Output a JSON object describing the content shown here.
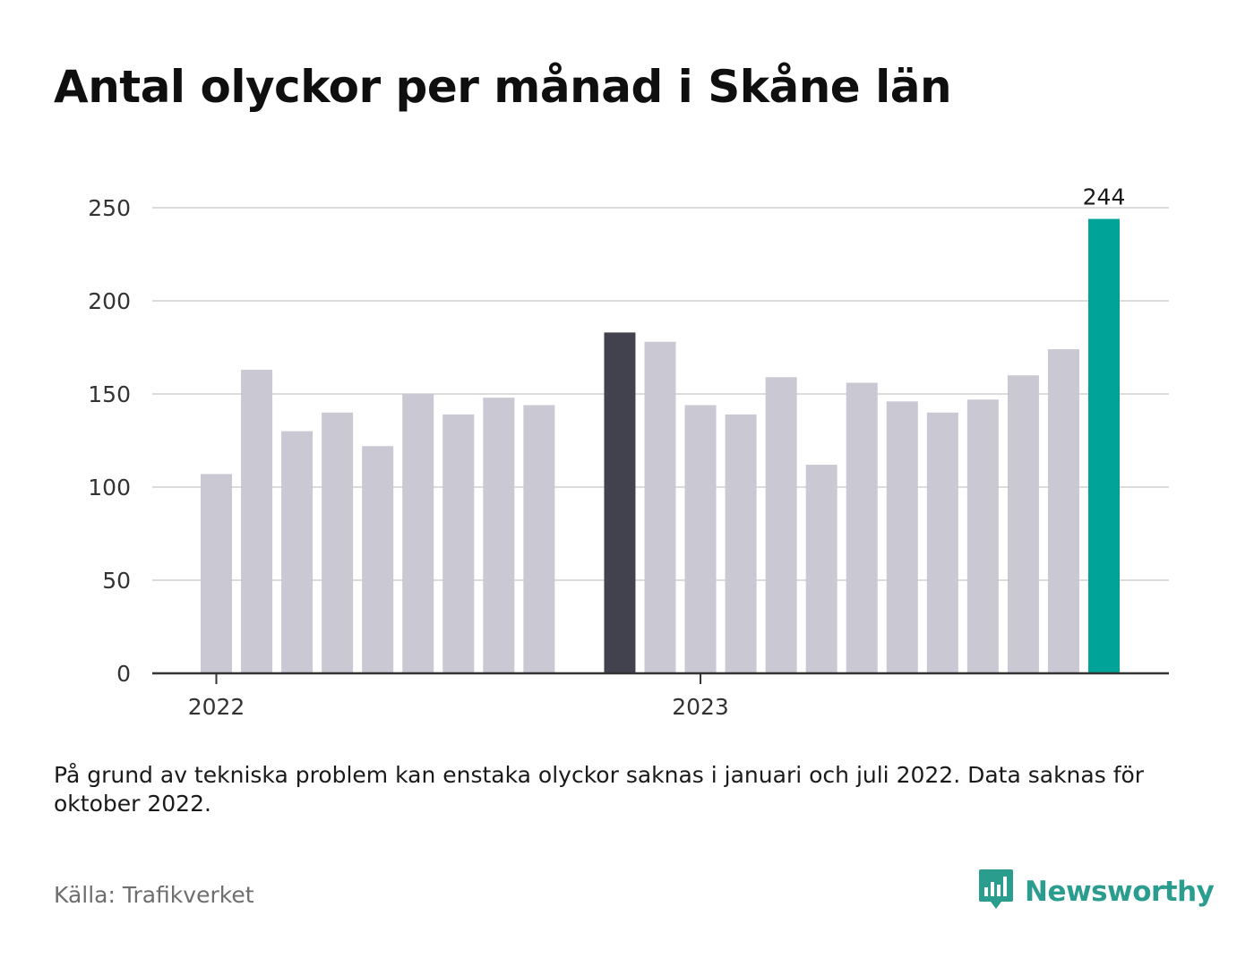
{
  "title": "Antal olyckor per månad i Skåne län",
  "note": "På grund av tekniska problem kan enstaka olyckor saknas i januari och juli 2022. Data saknas för oktober 2022.",
  "source": "Källa: Trafikverket",
  "brand": {
    "name": "Newsworthy",
    "icon": "bar-chart-speech-bubble-icon",
    "color": "#2a9d8f"
  },
  "colors": {
    "default_bar": "#c9c8d3",
    "highlight_bar": "#42414e",
    "latest_bar": "#00a398",
    "grid": "#dcdcdc",
    "axis": "#333333"
  },
  "chart_data": {
    "type": "bar",
    "x_tick_labels": [
      "2022",
      "2023"
    ],
    "y_ticks": [
      0,
      50,
      100,
      150,
      200,
      250
    ],
    "ylim": [
      0,
      250
    ],
    "grid": true,
    "series": [
      {
        "values": [
          {
            "period": "2022-01",
            "value": 107
          },
          {
            "period": "2022-02",
            "value": 163
          },
          {
            "period": "2022-03",
            "value": 130
          },
          {
            "period": "2022-04",
            "value": 140
          },
          {
            "period": "2022-05",
            "value": 122
          },
          {
            "period": "2022-06",
            "value": 150
          },
          {
            "period": "2022-07",
            "value": 139
          },
          {
            "period": "2022-08",
            "value": 148
          },
          {
            "period": "2022-09",
            "value": 144
          },
          {
            "period": "2022-10",
            "value": null
          },
          {
            "period": "2022-11",
            "value": 183,
            "highlight": "dark"
          },
          {
            "period": "2022-12",
            "value": 178
          },
          {
            "period": "2023-01",
            "value": 144
          },
          {
            "period": "2023-02",
            "value": 139
          },
          {
            "period": "2023-03",
            "value": 159
          },
          {
            "period": "2023-04",
            "value": 112
          },
          {
            "period": "2023-05",
            "value": 156
          },
          {
            "period": "2023-06",
            "value": 146
          },
          {
            "period": "2023-07",
            "value": 140
          },
          {
            "period": "2023-08",
            "value": 147
          },
          {
            "period": "2023-09",
            "value": 160
          },
          {
            "period": "2023-10",
            "value": 174
          },
          {
            "period": "2023-11",
            "value": 244,
            "highlight": "latest",
            "label": "244"
          }
        ]
      }
    ]
  }
}
